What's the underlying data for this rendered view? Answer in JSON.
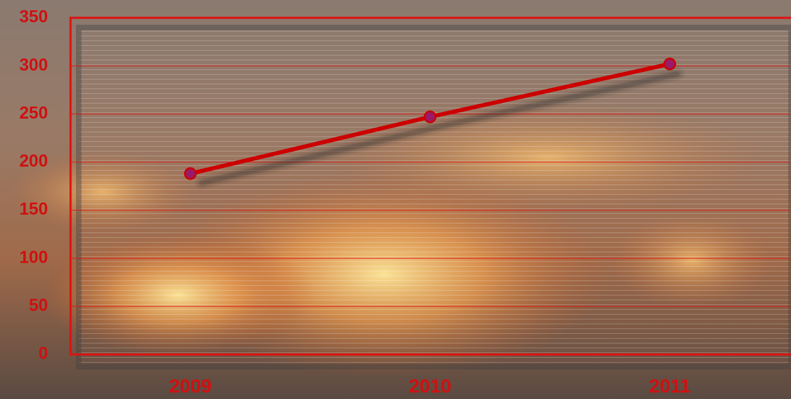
{
  "chart_data": {
    "type": "line",
    "categories": [
      "2009",
      "2010",
      "2011"
    ],
    "series": [
      {
        "values": [
          188,
          247,
          302
        ],
        "color": "#cc0000",
        "marker_color": "#9a1a6a"
      }
    ],
    "ylim": [
      0,
      350
    ],
    "yticks": [
      0,
      50,
      100,
      150,
      200,
      250,
      300,
      350
    ],
    "grid": true,
    "axis_color": "#e01010",
    "label_color": "#d01010"
  }
}
